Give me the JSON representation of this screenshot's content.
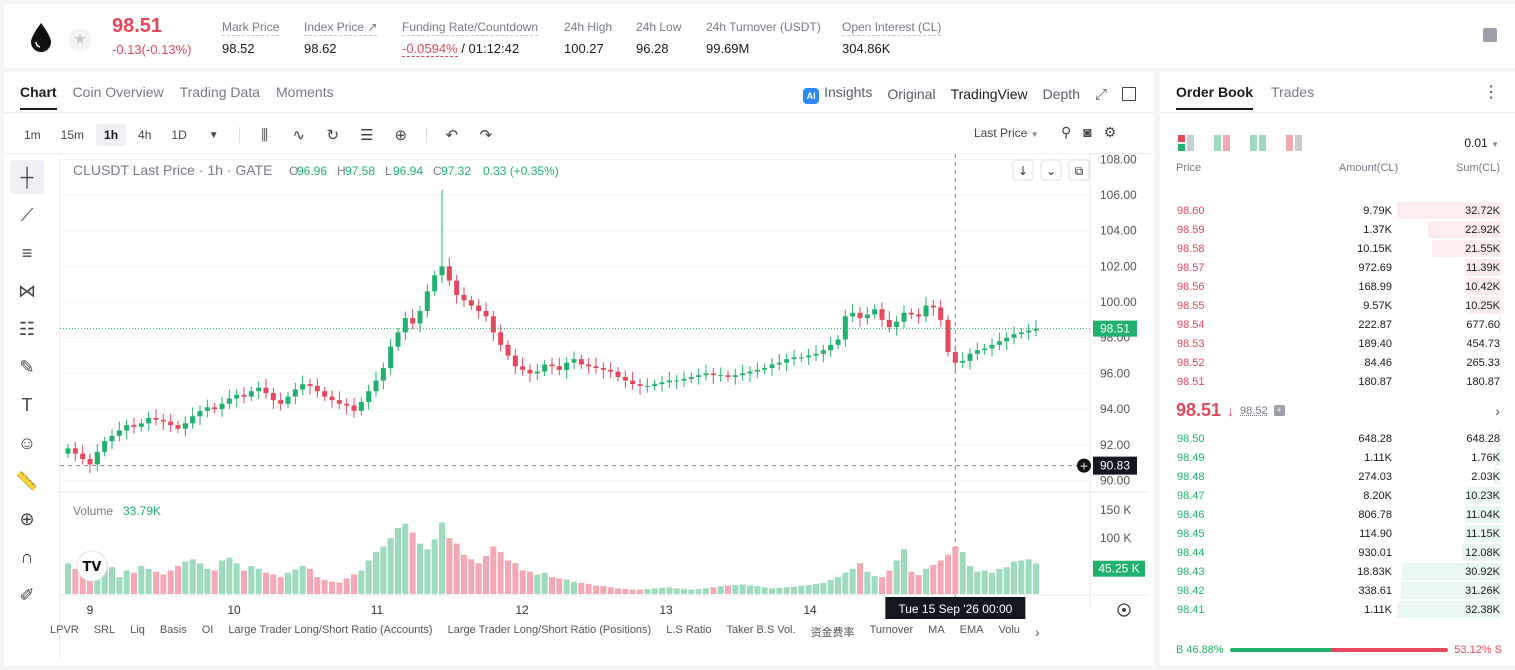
{
  "header": {
    "price": "98.51",
    "change": "-0.13(-0.13%)",
    "stats": [
      {
        "label": "Mark Price",
        "value": "98.52"
      },
      {
        "label": "Index Price ↗",
        "value": "98.62"
      },
      {
        "label": "Funding Rate/Countdown",
        "value_neg": "-0.0594%",
        "value": "/ 01:12:42"
      },
      {
        "label": "24h High",
        "value": "100.27"
      },
      {
        "label": "24h Low",
        "value": "96.28"
      },
      {
        "label": "24h Turnover (USDT)",
        "value": "99.69M"
      },
      {
        "label": "Open Interest (CL)",
        "value": "304.86K"
      }
    ]
  },
  "chart_tabs": [
    "Chart",
    "Coin Overview",
    "Trading Data",
    "Moments"
  ],
  "view_tabs": {
    "insights": "Insights",
    "original": "Original",
    "tradingview": "TradingView",
    "depth": "Depth"
  },
  "timeframes": [
    "1m",
    "15m",
    "1h",
    "4h",
    "1D"
  ],
  "price_source": "Last Price",
  "chart_data": {
    "type": "candlestick",
    "title": "CLUSDT Last Price · 1h · GATE",
    "ohlc": {
      "O": "96.96",
      "H": "97.58",
      "L": "96.94",
      "C": "97.32",
      "chg": "0.33 (+0.35%)"
    },
    "y_ticks": [
      "108.00",
      "106.00",
      "104.00",
      "102.00",
      "100.00",
      "98.00",
      "96.00",
      "94.00",
      "92.00",
      "90.00"
    ],
    "ylim": [
      89.8,
      108.3
    ],
    "x_ticks": [
      "9",
      "10",
      "11",
      "12",
      "13",
      "14"
    ],
    "last_price_label": "98.51",
    "crosshair_price_label": "90.83",
    "crosshair_time_label": "Tue 15 Sep '26   00:00",
    "volume": {
      "label": "Volume",
      "value": "33.79K",
      "ticks": [
        "150 K",
        "100 K"
      ],
      "last_label": "45.25 K"
    },
    "close_series": [
      91.8,
      91.5,
      91.2,
      90.9,
      91.6,
      92.2,
      92.5,
      92.8,
      93.1,
      93.0,
      93.2,
      93.5,
      93.4,
      93.3,
      93.1,
      92.9,
      93.2,
      93.6,
      93.9,
      94.1,
      94.0,
      94.3,
      94.6,
      94.8,
      94.7,
      95.0,
      95.2,
      94.9,
      94.5,
      94.3,
      94.7,
      95.1,
      95.4,
      95.3,
      95.0,
      94.7,
      94.5,
      94.3,
      94.2,
      93.9,
      94.4,
      95.0,
      95.6,
      96.3,
      97.5,
      98.3,
      99.1,
      98.8,
      99.5,
      100.6,
      101.5,
      102.0,
      101.2,
      100.4,
      100.1,
      99.8,
      99.5,
      99.2,
      98.3,
      97.6,
      97.0,
      96.4,
      96.2,
      96.0,
      96.1,
      96.5,
      96.4,
      96.2,
      96.6,
      96.8,
      96.5,
      96.4,
      96.3,
      96.2,
      96.1,
      95.8,
      95.6,
      95.4,
      95.3,
      95.3,
      95.4,
      95.5,
      95.6,
      95.6,
      95.7,
      95.8,
      95.9,
      96.0,
      95.9,
      95.9,
      95.8,
      95.9,
      96.0,
      96.1,
      96.2,
      96.3,
      96.5,
      96.6,
      96.8,
      96.9,
      96.9,
      97.0,
      97.1,
      97.3,
      97.6,
      97.9,
      99.2,
      99.4,
      99.1,
      99.3,
      99.6,
      99.0,
      98.6,
      98.9,
      99.4,
      99.3,
      99.2,
      99.8,
      99.7,
      99.0,
      97.2,
      96.6,
      96.7,
      97.1,
      97.3,
      97.4,
      97.6,
      97.8,
      98.0,
      98.2,
      98.3,
      98.4,
      98.51
    ],
    "volume_series": [
      55,
      45,
      50,
      35,
      40,
      55,
      48,
      30,
      42,
      38,
      50,
      45,
      40,
      35,
      42,
      50,
      58,
      62,
      55,
      45,
      42,
      60,
      65,
      55,
      42,
      50,
      45,
      38,
      35,
      30,
      38,
      44,
      50,
      45,
      30,
      25,
      22,
      20,
      28,
      35,
      42,
      60,
      75,
      85,
      100,
      118,
      126,
      110,
      90,
      80,
      98,
      128,
      100,
      90,
      70,
      62,
      55,
      68,
      85,
      75,
      60,
      55,
      42,
      40,
      35,
      38,
      30,
      28,
      26,
      22,
      20,
      18,
      15,
      14,
      12,
      10,
      9,
      8,
      8,
      9,
      10,
      11,
      12,
      10,
      9,
      8,
      9,
      10,
      12,
      14,
      15,
      16,
      17,
      15,
      14,
      12,
      10,
      11,
      12,
      13,
      15,
      16,
      18,
      20,
      25,
      30,
      38,
      45,
      55,
      40,
      32,
      30,
      42,
      60,
      80,
      40,
      34,
      45,
      52,
      60,
      70,
      85,
      75,
      50,
      40,
      42,
      38,
      45,
      48,
      58,
      60,
      62,
      55,
      45.25
    ]
  },
  "indicators": [
    "LPVR",
    "SRL",
    "Liq",
    "Basis",
    "OI",
    "Large Trader Long/Short Ratio (Accounts)",
    "Large Trader Long/Short Ratio (Positions)",
    "L.S Ratio",
    "Taker B.S Vol.",
    "资金费率",
    "Turnover",
    "MA",
    "EMA",
    "Volu"
  ],
  "orderbook": {
    "tabs": [
      "Order Book",
      "Trades"
    ],
    "precision": "0.01",
    "columns": {
      "price": "Price",
      "amount": "Amount(CL)",
      "sum": "Sum(CL)"
    },
    "asks": [
      {
        "price": "98.60",
        "amount": "9.79K",
        "sum": "32.72K",
        "depth": 1.0
      },
      {
        "price": "98.59",
        "amount": "1.37K",
        "sum": "22.92K",
        "depth": 0.7
      },
      {
        "price": "98.58",
        "amount": "10.15K",
        "sum": "21.55K",
        "depth": 0.66
      },
      {
        "price": "98.57",
        "amount": "972.69",
        "sum": "11.39K",
        "depth": 0.35
      },
      {
        "price": "98.56",
        "amount": "168.99",
        "sum": "10.42K",
        "depth": 0.32
      },
      {
        "price": "98.55",
        "amount": "9.57K",
        "sum": "10.25K",
        "depth": 0.31
      },
      {
        "price": "98.54",
        "amount": "222.87",
        "sum": "677.60",
        "depth": 0.02
      },
      {
        "price": "98.53",
        "amount": "189.40",
        "sum": "454.73",
        "depth": 0.014
      },
      {
        "price": "98.52",
        "amount": "84.46",
        "sum": "265.33",
        "depth": 0.008
      },
      {
        "price": "98.51",
        "amount": "180.87",
        "sum": "180.87",
        "depth": 0.005
      }
    ],
    "mid": {
      "price": "98.51",
      "arrow": "↓",
      "mark": "98.52"
    },
    "bids": [
      {
        "price": "98.50",
        "amount": "648.28",
        "sum": "648.28",
        "depth": 0.02
      },
      {
        "price": "98.49",
        "amount": "1.11K",
        "sum": "1.76K",
        "depth": 0.054
      },
      {
        "price": "98.48",
        "amount": "274.03",
        "sum": "2.03K",
        "depth": 0.063
      },
      {
        "price": "98.47",
        "amount": "8.20K",
        "sum": "10.23K",
        "depth": 0.316
      },
      {
        "price": "98.46",
        "amount": "806.78",
        "sum": "11.04K",
        "depth": 0.341
      },
      {
        "price": "98.45",
        "amount": "114.90",
        "sum": "11.15K",
        "depth": 0.344
      },
      {
        "price": "98.44",
        "amount": "930.01",
        "sum": "12.08K",
        "depth": 0.373
      },
      {
        "price": "98.43",
        "amount": "18.83K",
        "sum": "30.92K",
        "depth": 0.955
      },
      {
        "price": "98.42",
        "amount": "338.61",
        "sum": "31.26K",
        "depth": 0.965
      },
      {
        "price": "98.41",
        "amount": "1.11K",
        "sum": "32.38K",
        "depth": 1.0
      }
    ],
    "ratio": {
      "buy": "B 46.88%",
      "sell": "53.12% S",
      "buy_fraction": 0.4688
    }
  },
  "colors": {
    "up": "#20b26c",
    "down": "#e5485d",
    "up_vol": "#9ddbbd",
    "down_vol": "#f4a8b3"
  }
}
